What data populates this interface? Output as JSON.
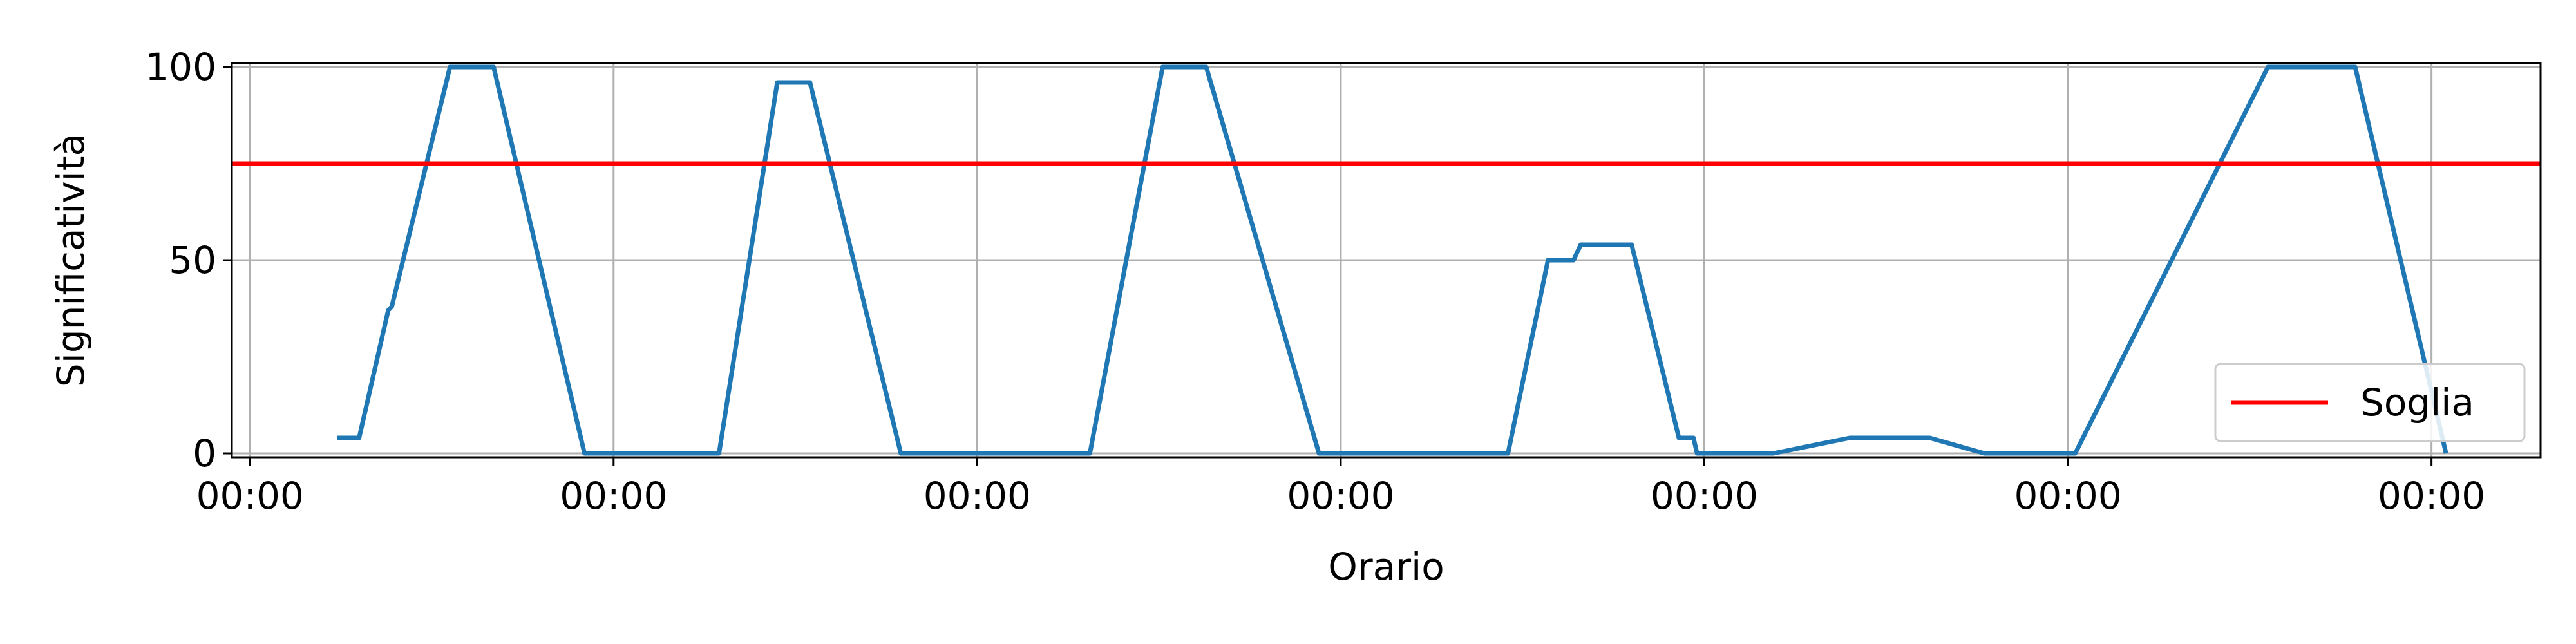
{
  "chart_data": {
    "type": "line",
    "xlabel": "Orario",
    "ylabel": "Significatività",
    "x_tick_labels": [
      "00:00",
      "00:00",
      "00:00",
      "00:00",
      "00:00",
      "00:00",
      "00:00"
    ],
    "yticks": [
      0,
      50,
      100
    ],
    "xlim": [
      -0.05,
      6.3
    ],
    "ylim": [
      -1,
      101
    ],
    "grid": true,
    "legend": {
      "position": "bottom-right",
      "entries": [
        "Soglia"
      ]
    },
    "threshold": {
      "name": "Soglia",
      "value": 75,
      "color": "#ff0000"
    },
    "series": [
      {
        "color": "#1f77b4",
        "x": [
          0.24,
          0.3,
          0.38,
          0.39,
          0.55,
          0.67,
          0.92,
          1.29,
          1.45,
          1.54,
          1.79,
          2.31,
          2.51,
          2.63,
          2.94,
          3.46,
          3.57,
          3.64,
          3.66,
          3.8,
          3.93,
          3.97,
          3.98,
          4.19,
          4.4,
          4.62,
          4.77,
          5.02,
          5.55,
          5.79,
          6.04
        ],
        "y": [
          4,
          4,
          37,
          38,
          100,
          100,
          0,
          0,
          96,
          96,
          0,
          0,
          100,
          100,
          0,
          0,
          50,
          50,
          54,
          54,
          4,
          4,
          0,
          0,
          4,
          4,
          0,
          0,
          100,
          100,
          0
        ]
      }
    ]
  }
}
